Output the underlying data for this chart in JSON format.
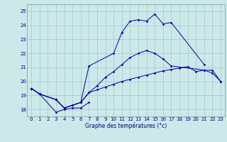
{
  "xlabel": "Graphe des températures (°c)",
  "background_color": "#cce8e8",
  "grid_color": "#99cccc",
  "line_color": "#0000aa",
  "ylim": [
    17.5,
    25.5
  ],
  "xlim": [
    -0.5,
    23.5
  ],
  "yticks": [
    18,
    19,
    20,
    21,
    22,
    23,
    24,
    25
  ],
  "xticks": [
    0,
    1,
    2,
    3,
    4,
    5,
    6,
    7,
    8,
    9,
    10,
    11,
    12,
    13,
    14,
    15,
    16,
    17,
    18,
    19,
    20,
    21,
    22,
    23
  ],
  "lines": [
    {
      "x": [
        0,
        1,
        3,
        4,
        5,
        6,
        7
      ],
      "y": [
        19.5,
        19.1,
        17.8,
        18.0,
        18.1,
        18.1,
        18.5
      ]
    },
    {
      "x": [
        0,
        1,
        3,
        4,
        5,
        6,
        7,
        8,
        9,
        10,
        11,
        12,
        13,
        14,
        15,
        16,
        17,
        18,
        19,
        20,
        21,
        22,
        23
      ],
      "y": [
        19.5,
        19.1,
        18.7,
        18.1,
        18.3,
        18.5,
        19.2,
        19.4,
        19.6,
        19.8,
        20.0,
        20.15,
        20.3,
        20.45,
        20.6,
        20.75,
        20.85,
        20.95,
        21.05,
        20.7,
        20.8,
        20.6,
        20.0
      ]
    },
    {
      "x": [
        0,
        1,
        3,
        4,
        5,
        6,
        7,
        8,
        9,
        10,
        11,
        12,
        13,
        14,
        15,
        16,
        17,
        21,
        22,
        23
      ],
      "y": [
        19.5,
        19.1,
        18.7,
        18.1,
        18.3,
        18.5,
        19.2,
        19.7,
        20.3,
        20.7,
        21.2,
        21.7,
        22.0,
        22.2,
        22.0,
        21.6,
        21.1,
        20.8,
        20.8,
        20.0
      ]
    },
    {
      "x": [
        0,
        1,
        3,
        4,
        5,
        6,
        7,
        10,
        11,
        12,
        13,
        14,
        15,
        16,
        17,
        21
      ],
      "y": [
        19.5,
        19.1,
        18.7,
        18.1,
        18.3,
        18.5,
        21.1,
        22.0,
        23.5,
        24.3,
        24.4,
        24.3,
        24.8,
        24.1,
        24.2,
        21.2
      ]
    }
  ]
}
